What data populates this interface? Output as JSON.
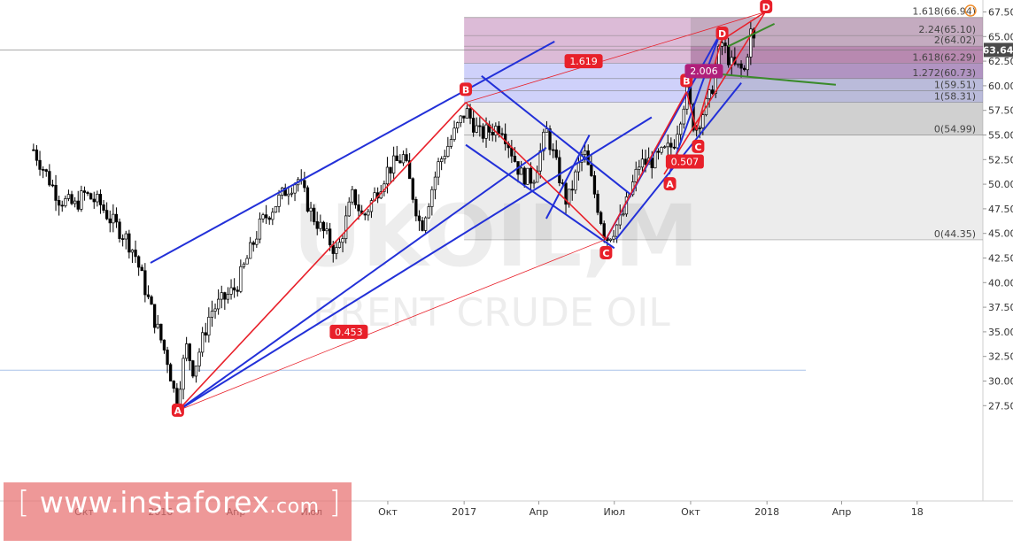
{
  "watermark": {
    "symbol": "UKOIL,M",
    "name": "BRENT CRUDE OIL"
  },
  "logo": {
    "bracket_open": "[",
    "domain": "www.instaforex",
    "tld": ".com",
    "bracket_close": "]"
  },
  "clock_icon": "clock-icon",
  "colors": {
    "candles": "#000000",
    "channel_lines": "#2230d8",
    "pattern_lines": "#e8202a",
    "green_line": "#3a8a2a",
    "fib_purple": "#9b3c8c",
    "fib_blue": "#6068ee",
    "fib_grey": "#b9b9b9",
    "label_bg": "#e8202a",
    "price_label_bg": "#4a4a4a"
  },
  "chart_data": {
    "type": "candlestick",
    "title": "",
    "xlabel": "",
    "ylabel": "",
    "ylim": [
      26.5,
      67.8
    ],
    "y_ticks": [
      "27.50",
      "30.00",
      "32.50",
      "35.00",
      "37.50",
      "40.00",
      "42.50",
      "45.00",
      "47.50",
      "50.00",
      "52.50",
      "55.00",
      "57.50",
      "60.00",
      "62.50",
      "65.00",
      "67.50"
    ],
    "x_ticks": [
      "Окт",
      "2016",
      "Апр",
      "Июл",
      "Окт",
      "2017",
      "Апр",
      "Июл",
      "Окт",
      "2018",
      "Апр",
      "18"
    ],
    "current_price": "63.64",
    "close_series": [
      {
        "date": "2015-08",
        "close": 53.5
      },
      {
        "date": "2015-09",
        "close": 48.5
      },
      {
        "date": "2015-09-20",
        "close": 47.8
      },
      {
        "date": "2015-10",
        "close": 49.0
      },
      {
        "date": "2015-10-20",
        "close": 48.0
      },
      {
        "date": "2015-11",
        "close": 46.5
      },
      {
        "date": "2015-11-20",
        "close": 44.6
      },
      {
        "date": "2015-12",
        "close": 43.0
      },
      {
        "date": "2015-12-20",
        "close": 37.5
      },
      {
        "date": "2016-01-10",
        "close": 32.0
      },
      {
        "date": "2016-01-20",
        "close": 27.8
      },
      {
        "date": "2016-02-01",
        "close": 33.5
      },
      {
        "date": "2016-02-10",
        "close": 31.0
      },
      {
        "date": "2016-03-01",
        "close": 37.0
      },
      {
        "date": "2016-04-01",
        "close": 39.5
      },
      {
        "date": "2016-05-01",
        "close": 46.0
      },
      {
        "date": "2016-06-01",
        "close": 49.5
      },
      {
        "date": "2016-06-15",
        "close": 50.5
      },
      {
        "date": "2016-07-01",
        "close": 47.0
      },
      {
        "date": "2016-08-01",
        "close": 43.0
      },
      {
        "date": "2016-08-20",
        "close": 49.0
      },
      {
        "date": "2016-09-01",
        "close": 46.5
      },
      {
        "date": "2016-10-01",
        "close": 51.5
      },
      {
        "date": "2016-10-20",
        "close": 52.8
      },
      {
        "date": "2016-11-10",
        "close": 45.5
      },
      {
        "date": "2016-12-01",
        "close": 52.0
      },
      {
        "date": "2017-01-03",
        "close": 57.5
      },
      {
        "date": "2017-01-20",
        "close": 55.0
      },
      {
        "date": "2017-02-15",
        "close": 56.0
      },
      {
        "date": "2017-03-10",
        "close": 51.0
      },
      {
        "date": "2017-03-25",
        "close": 50.5
      },
      {
        "date": "2017-04-10",
        "close": 55.5
      },
      {
        "date": "2017-05-05",
        "close": 48.0
      },
      {
        "date": "2017-05-25",
        "close": 53.5
      },
      {
        "date": "2017-06-21",
        "close": 44.4
      },
      {
        "date": "2017-07-10",
        "close": 46.5
      },
      {
        "date": "2017-07-31",
        "close": 52.0
      },
      {
        "date": "2017-08-20",
        "close": 52.5
      },
      {
        "date": "2017-09-10",
        "close": 54.0
      },
      {
        "date": "2017-09-26",
        "close": 59.4
      },
      {
        "date": "2017-10-06",
        "close": 55.5
      },
      {
        "date": "2017-10-25",
        "close": 59.0
      },
      {
        "date": "2017-11-07",
        "close": 64.5
      },
      {
        "date": "2017-11-20",
        "close": 62.0
      },
      {
        "date": "2017-12-05",
        "close": 61.5
      },
      {
        "date": "2017-12-12",
        "close": 65.5
      },
      {
        "date": "2017-12-20",
        "close": 63.64
      }
    ],
    "fibonacci_levels": [
      {
        "label": "1.618(66.94)",
        "value": 66.94
      },
      {
        "label": "2.24(65.10)",
        "value": 65.1
      },
      {
        "label": "2(64.02)",
        "value": 64.02
      },
      {
        "label": "1.618(62.29)",
        "value": 62.29
      },
      {
        "label": "1.272(60.73)",
        "value": 60.73
      },
      {
        "label": "1(59.51)",
        "value": 59.51
      },
      {
        "label": "1(58.31)",
        "value": 58.31
      },
      {
        "label": "0(54.99)",
        "value": 54.99
      },
      {
        "label": "0(44.35)",
        "value": 44.35
      }
    ],
    "point_labels": [
      "A",
      "B",
      "C",
      "A",
      "B",
      "C",
      "D"
    ],
    "ratio_labels": [
      "1.619",
      "0.453",
      "0.507",
      "2.006"
    ]
  }
}
